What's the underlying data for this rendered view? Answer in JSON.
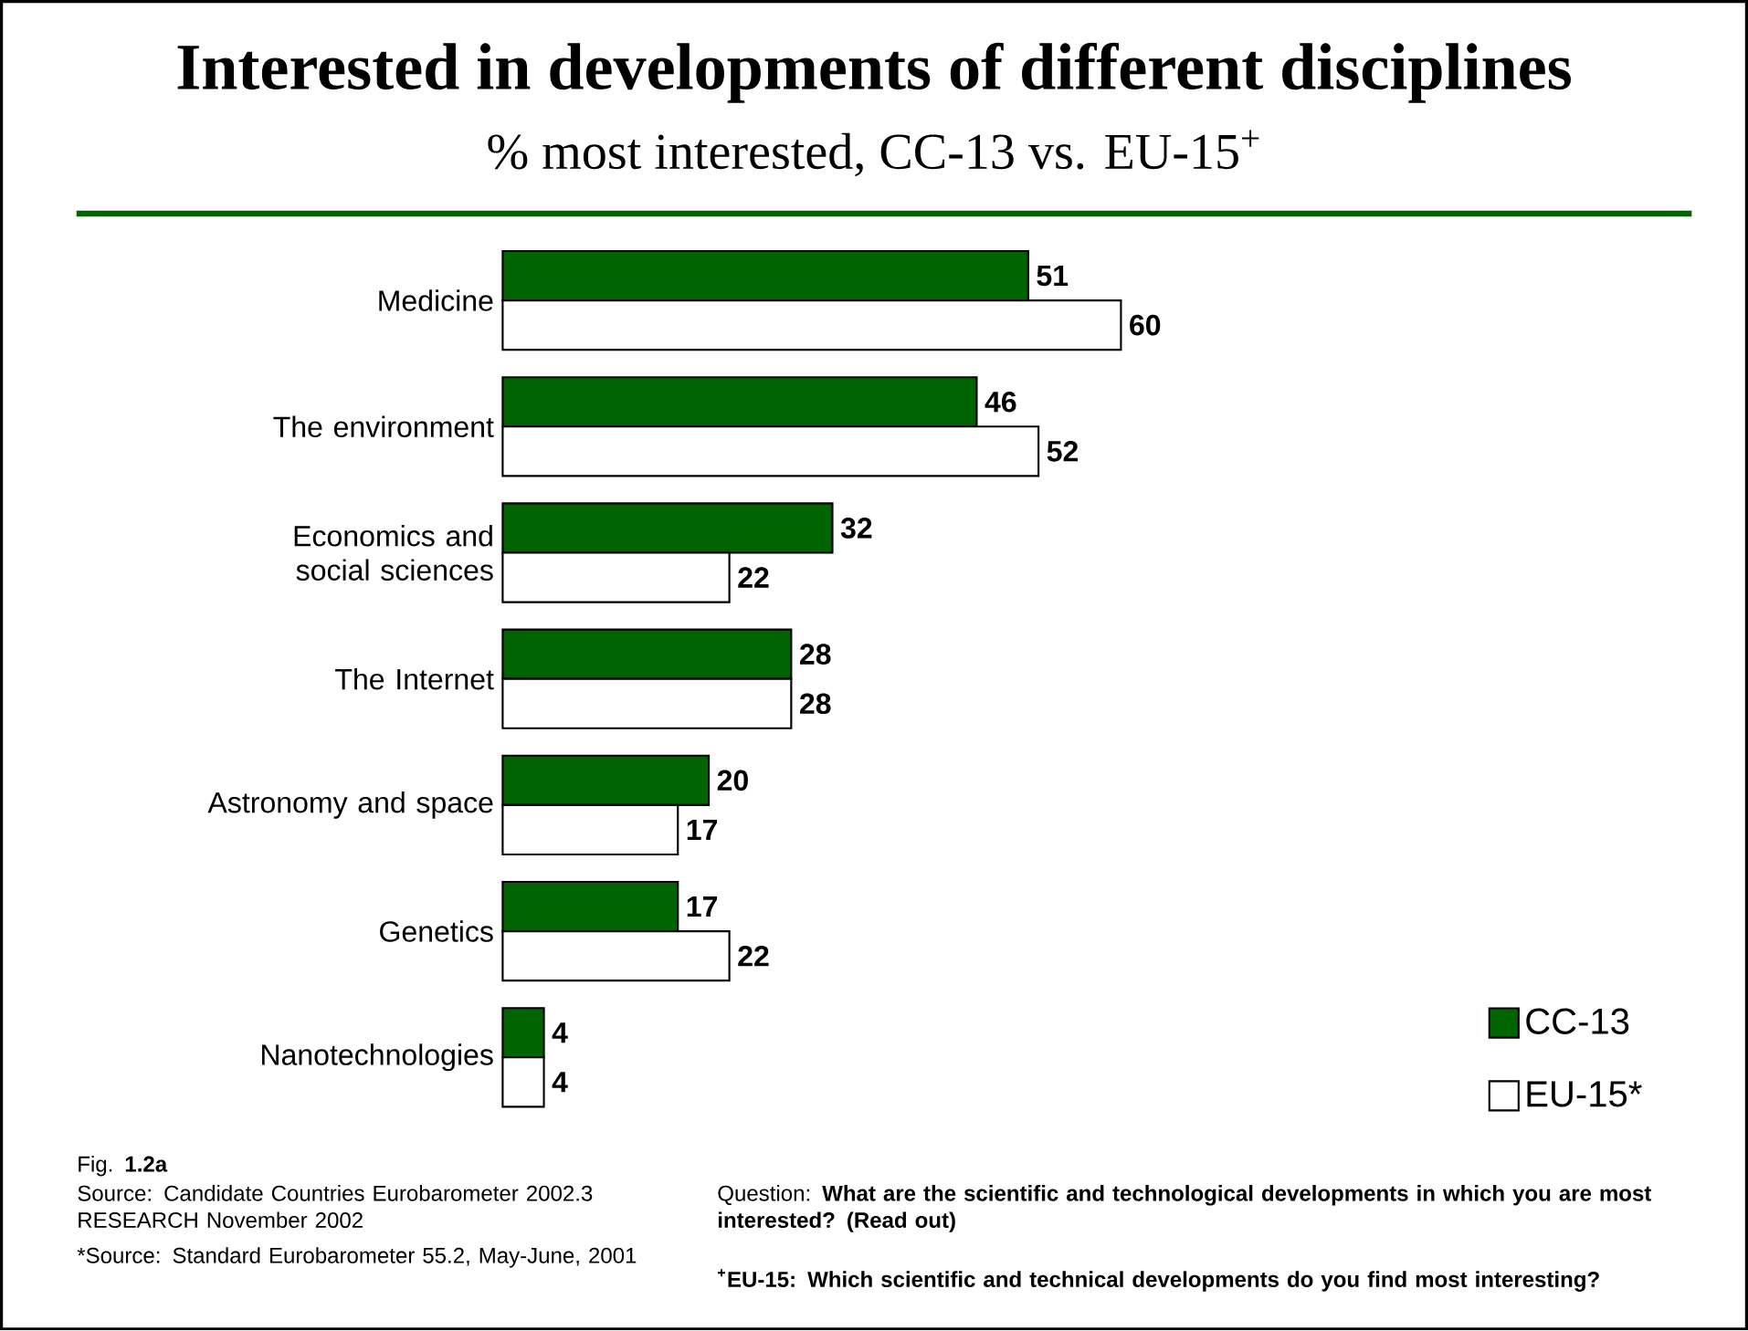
{
  "chart_data": {
    "type": "bar",
    "orientation": "horizontal",
    "title": "Interested in developments of different disciplines",
    "subtitle": "% most interested, CC-13 vs. EU-15$^{+}$",
    "categories": [
      "Medicine",
      "The environment",
      "Economics and social sciences",
      "The Internet",
      "Astronomy and space",
      "Genetics",
      "Nanotechnologies"
    ],
    "series": [
      {
        "name": "CC-13",
        "color": "#006400",
        "values": [
          51,
          46,
          32,
          28,
          20,
          17,
          4
        ]
      },
      {
        "name": "EU-15*",
        "color": "#ffffff",
        "values": [
          60,
          52,
          22,
          28,
          17,
          22,
          4
        ]
      }
    ],
    "data_labels": true,
    "legend": "bottom right",
    "annotations": [
      "Fig. **1.2a**",
      "Source: Candidate Countries Eurobarometer 2002.3 RESEARCH November  2002",
      "*Source: Standard Eurobarometer 55.2, May-June, 2001",
      "Question:  **What are the scientific and technological developments in which you are most interested? (Read out)**",
      "$^{+}$EU-15: Which scientific and technical developments do you find most interesting?"
    ]
  }
}
